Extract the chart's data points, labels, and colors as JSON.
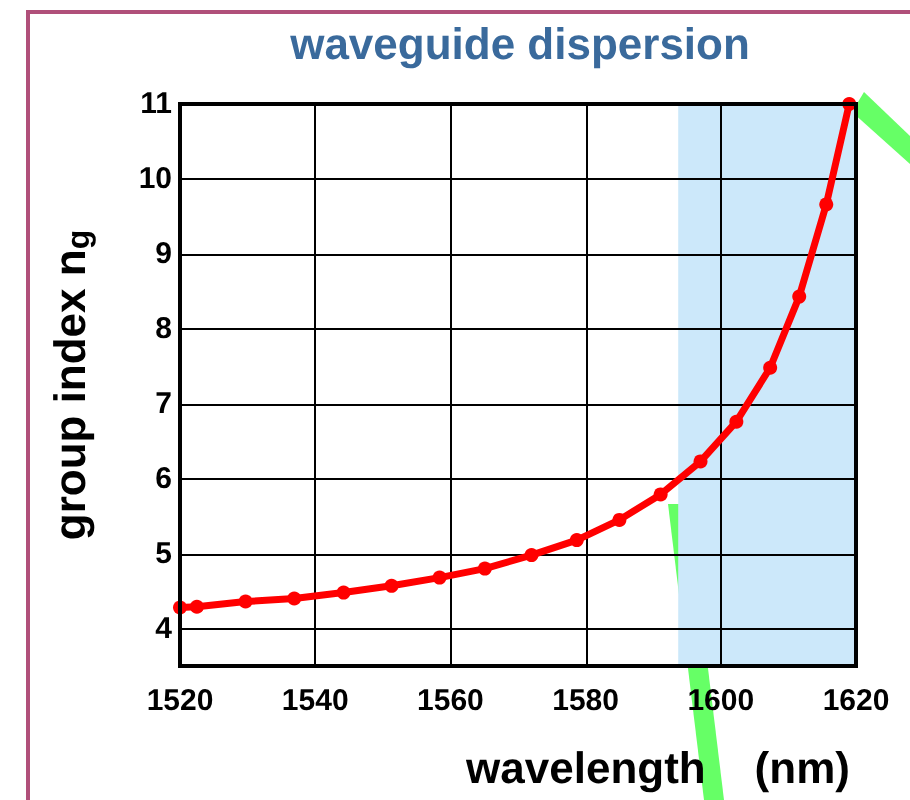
{
  "chart_data": {
    "type": "line",
    "title": "waveguide dispersion",
    "xlabel": "wavelength    (nm)",
    "ylabel": "group index n$_{g}$",
    "series": [
      {
        "color": "#ff0000",
        "x": [
          1520,
          1522.5,
          1529.7,
          1536.9,
          1544.2,
          1551.3,
          1558.4,
          1565.1,
          1572.0,
          1578.7,
          1585.0,
          1591.1,
          1597.0,
          1602.3,
          1607.3,
          1611.6,
          1615.6,
          1619
        ],
        "values": [
          4.28,
          4.29,
          4.36,
          4.4,
          4.48,
          4.57,
          4.68,
          4.8,
          4.98,
          5.18,
          5.45,
          5.79,
          6.23,
          6.76,
          7.48,
          8.43,
          9.66,
          11.0
        ]
      }
    ],
    "xlim": [
      1520,
      1620
    ],
    "xticks": [
      1520,
      1540,
      1560,
      1580,
      1600,
      1620
    ],
    "ylim": [
      3.5,
      11
    ],
    "yticks": [
      4,
      5,
      6,
      7,
      8,
      9,
      10,
      11
    ],
    "bands": [
      {
        "axis": "x",
        "from": 1593.7,
        "to": 1620,
        "color": "#cce8fa"
      }
    ],
    "grid": true,
    "marker": "circle",
    "line_style": "solid"
  }
}
